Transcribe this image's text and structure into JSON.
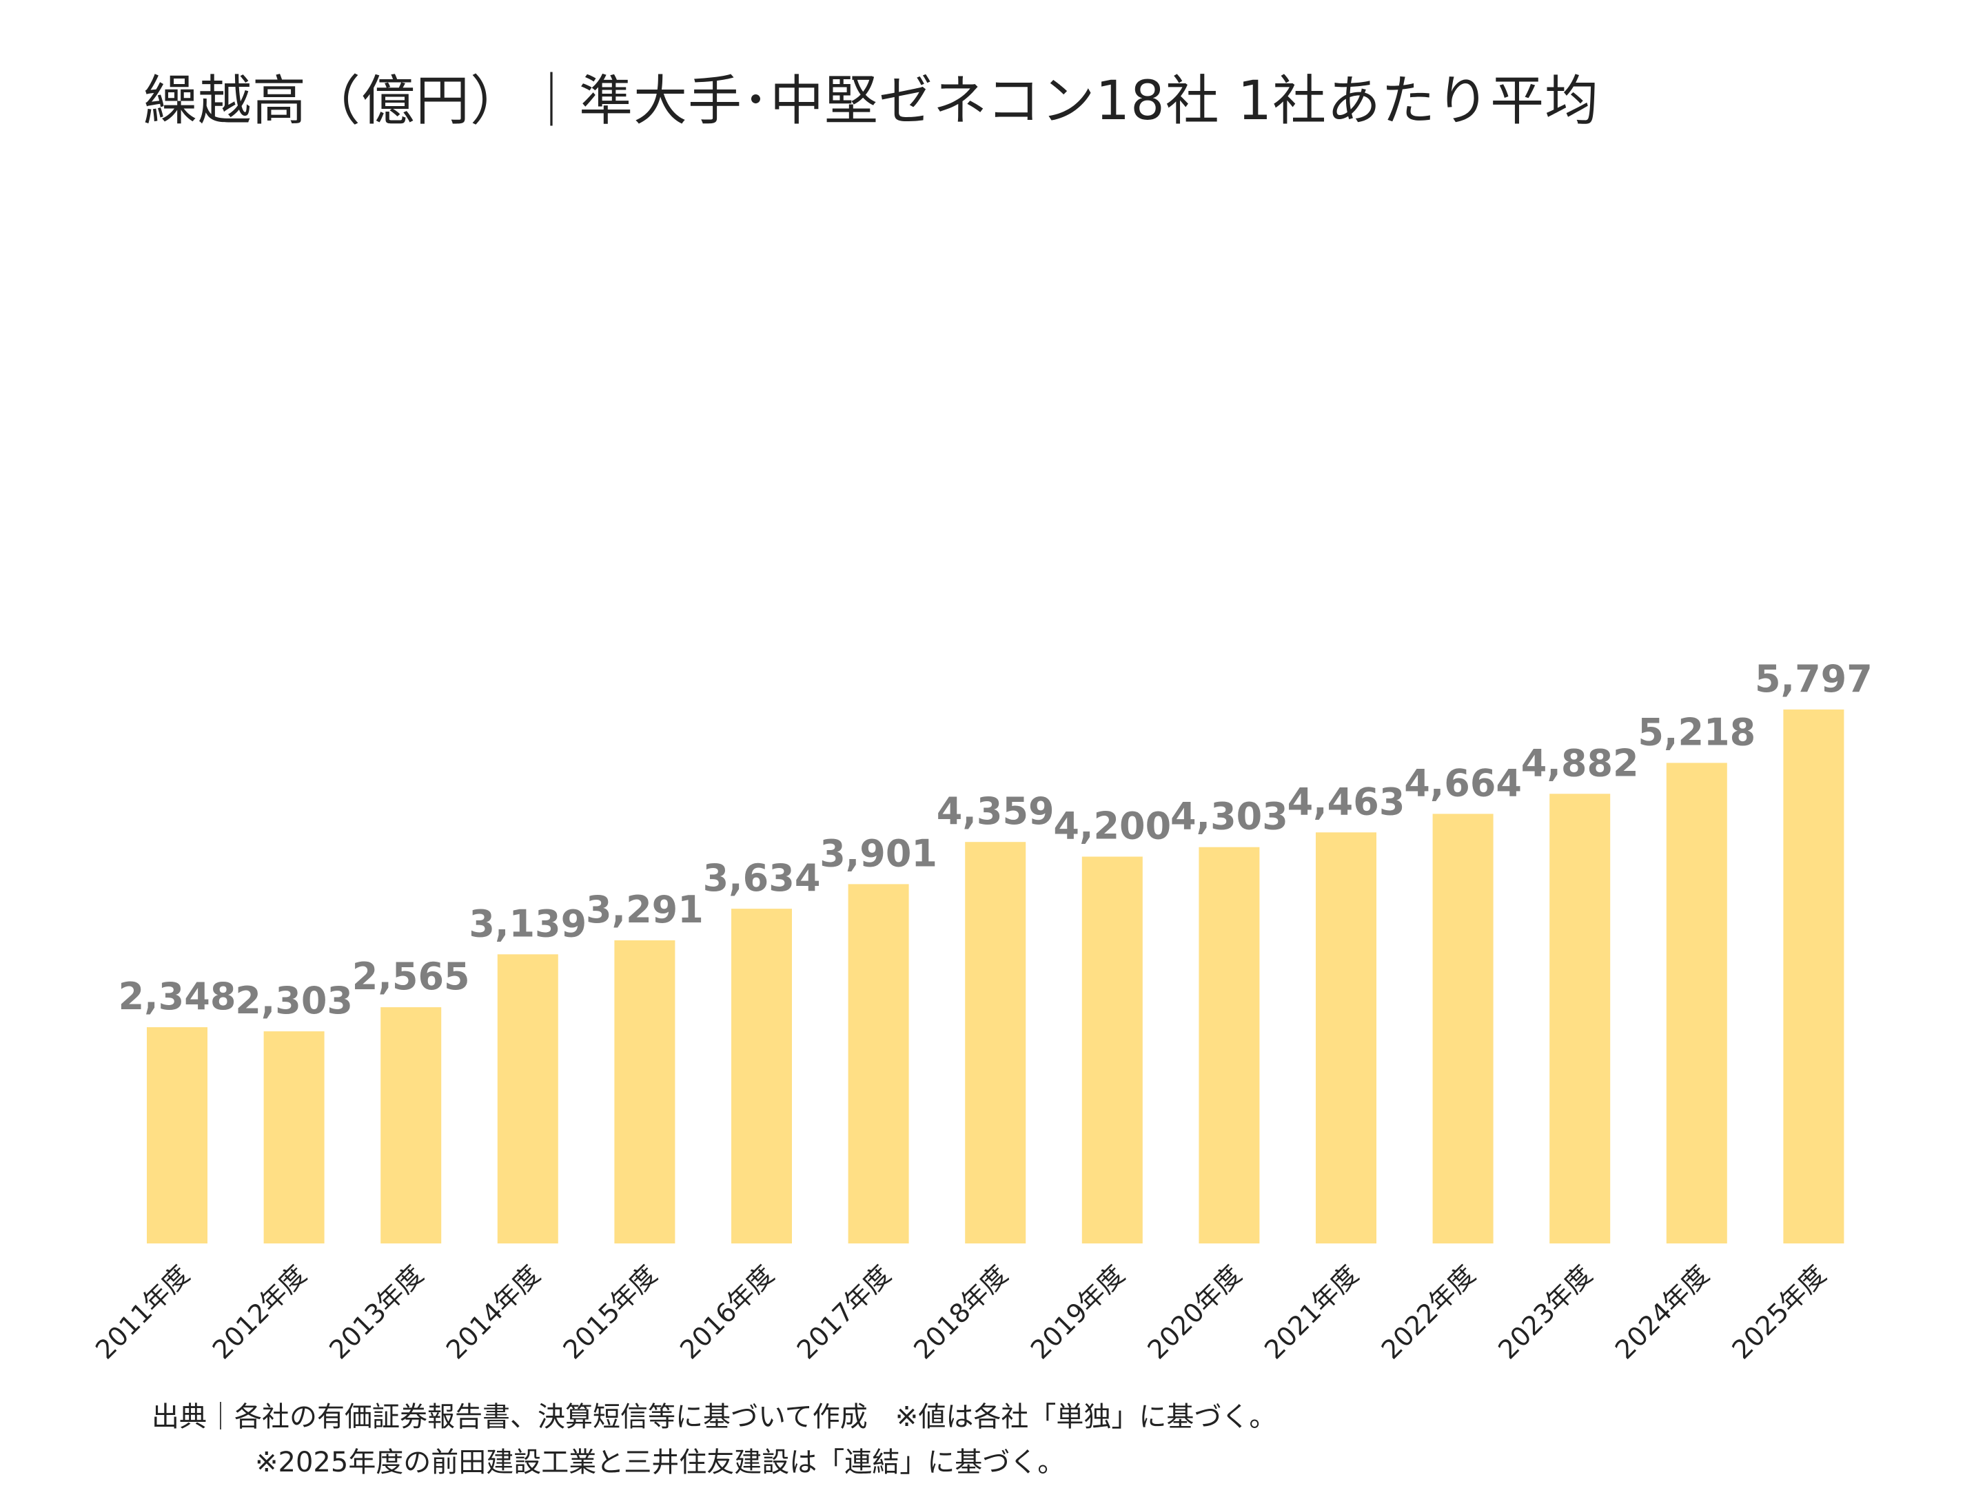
{
  "chart_data": {
    "type": "bar",
    "title": "繰越高（億円）｜準大手･中堅ゼネコン18社 1社あたり平均",
    "categories": [
      "2011年度",
      "2012年度",
      "2013年度",
      "2014年度",
      "2015年度",
      "2016年度",
      "2017年度",
      "2018年度",
      "2019年度",
      "2020年度",
      "2021年度",
      "2022年度",
      "2023年度",
      "2024年度",
      "2025年度"
    ],
    "values": [
      2348,
      2303,
      2565,
      3139,
      3291,
      3634,
      3901,
      4359,
      4200,
      4303,
      4463,
      4664,
      4882,
      5218,
      5797
    ],
    "value_labels": [
      "2,348",
      "2,303",
      "2,565",
      "3,139",
      "3,291",
      "3,634",
      "3,901",
      "4,359",
      "4,200",
      "4,303",
      "4,463",
      "4,664",
      "4,882",
      "5,218",
      "5,797"
    ],
    "xlabel": "",
    "ylabel": "",
    "ylim": [
      0,
      6000
    ],
    "grid": false,
    "legend": "none",
    "bar_color": "#FFDF85",
    "label_color": "#7F7F7F"
  },
  "notes": {
    "source": "出典｜各社の有価証券報告書、決算短信等に基づいて作成　※値は各社「単独」に基づく。",
    "footnote": "※2025年度の前田建設工業と三井住友建設は「連結」に基づく。"
  }
}
